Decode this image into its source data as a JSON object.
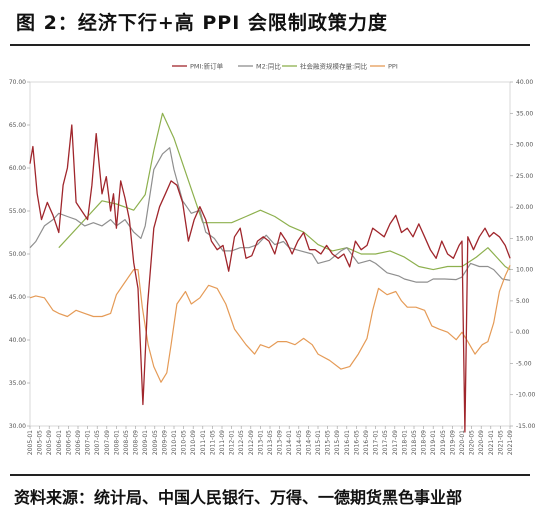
{
  "title": "图 2：经济下行+高 PPI 会限制政策力度",
  "source": "资料来源：统计局、中国人民银行、万得、一德期货黑色事业部",
  "colors": {
    "pmi": "#a0262c",
    "m2": "#8f8f8f",
    "social": "#8db04e",
    "ppi": "#e59b57"
  },
  "chart_data": {
    "type": "line",
    "title": "",
    "xlabel": "",
    "ylabel": "",
    "x_ticks": [
      "2005-01",
      "2005-05",
      "2005-09",
      "2006-01",
      "2006-05",
      "2006-09",
      "2007-01",
      "2007-05",
      "2007-09",
      "2008-01",
      "2008-05",
      "2008-09",
      "2009-01",
      "2009-05",
      "2009-09",
      "2010-01",
      "2010-05",
      "2010-09",
      "2011-01",
      "2011-05",
      "2011-09",
      "2012-01",
      "2012-05",
      "2012-09",
      "2013-01",
      "2013-05",
      "2013-09",
      "2014-01",
      "2014-05",
      "2014-09",
      "2015-01",
      "2015-05",
      "2015-09",
      "2016-01",
      "2016-05",
      "2016-09",
      "2017-01",
      "2017-05",
      "2017-09",
      "2018-01",
      "2018-05",
      "2018-09",
      "2019-01",
      "2019-05",
      "2019-09",
      "2020-01",
      "2020-05",
      "2020-09",
      "2021-01",
      "2021-05",
      "2021-09"
    ],
    "y_left": {
      "min": 30,
      "max": 70,
      "ticks": [
        "30.00",
        "35.00",
        "40.00",
        "45.00",
        "50.00",
        "55.00",
        "60.00",
        "65.00",
        "70.00"
      ]
    },
    "y_right": {
      "min": -15,
      "max": 40,
      "ticks": [
        "-15.00",
        "-10.00",
        "-5.00",
        "0.00",
        "5.00",
        "10.00",
        "15.00",
        "20.00",
        "25.00",
        "30.00",
        "35.00",
        "40.00"
      ]
    },
    "legend_position": "top-center",
    "grid": false,
    "series": [
      {
        "name": "PMI:新订单",
        "axis": "left",
        "points": [
          [
            2005.0,
            60.5
          ],
          [
            2005.1,
            62.5
          ],
          [
            2005.25,
            57.0
          ],
          [
            2005.4,
            54.0
          ],
          [
            2005.6,
            56.0
          ],
          [
            2005.8,
            54.5
          ],
          [
            2006.0,
            52.5
          ],
          [
            2006.15,
            58.0
          ],
          [
            2006.3,
            60.0
          ],
          [
            2006.45,
            65.0
          ],
          [
            2006.6,
            56.0
          ],
          [
            2006.8,
            55.0
          ],
          [
            2007.0,
            54.0
          ],
          [
            2007.15,
            58.0
          ],
          [
            2007.3,
            64.0
          ],
          [
            2007.5,
            57.0
          ],
          [
            2007.65,
            59.0
          ],
          [
            2007.8,
            55.0
          ],
          [
            2007.9,
            57.0
          ],
          [
            2008.0,
            53.0
          ],
          [
            2008.15,
            58.5
          ],
          [
            2008.3,
            56.5
          ],
          [
            2008.45,
            54.0
          ],
          [
            2008.6,
            49.0
          ],
          [
            2008.75,
            46.0
          ],
          [
            2008.92,
            32.5
          ],
          [
            2009.08,
            44.0
          ],
          [
            2009.3,
            53.0
          ],
          [
            2009.5,
            55.5
          ],
          [
            2009.7,
            57.0
          ],
          [
            2009.9,
            58.5
          ],
          [
            2010.1,
            58.0
          ],
          [
            2010.3,
            56.0
          ],
          [
            2010.5,
            51.5
          ],
          [
            2010.7,
            54.0
          ],
          [
            2010.9,
            55.5
          ],
          [
            2011.1,
            54.0
          ],
          [
            2011.3,
            51.5
          ],
          [
            2011.5,
            50.5
          ],
          [
            2011.7,
            51.0
          ],
          [
            2011.9,
            48.0
          ],
          [
            2012.1,
            52.0
          ],
          [
            2012.3,
            53.0
          ],
          [
            2012.5,
            49.5
          ],
          [
            2012.7,
            49.8
          ],
          [
            2012.9,
            51.5
          ],
          [
            2013.1,
            52.0
          ],
          [
            2013.3,
            51.5
          ],
          [
            2013.5,
            50.0
          ],
          [
            2013.7,
            52.5
          ],
          [
            2013.9,
            51.5
          ],
          [
            2014.1,
            50.0
          ],
          [
            2014.3,
            51.5
          ],
          [
            2014.5,
            52.5
          ],
          [
            2014.7,
            50.5
          ],
          [
            2014.9,
            50.5
          ],
          [
            2015.1,
            50.0
          ],
          [
            2015.3,
            51.0
          ],
          [
            2015.5,
            50.0
          ],
          [
            2015.7,
            49.5
          ],
          [
            2015.9,
            50.0
          ],
          [
            2016.1,
            48.5
          ],
          [
            2016.3,
            51.5
          ],
          [
            2016.5,
            50.5
          ],
          [
            2016.7,
            51.0
          ],
          [
            2016.9,
            53.0
          ],
          [
            2017.1,
            52.5
          ],
          [
            2017.3,
            52.0
          ],
          [
            2017.5,
            53.5
          ],
          [
            2017.7,
            54.5
          ],
          [
            2017.9,
            52.5
          ],
          [
            2018.1,
            53.0
          ],
          [
            2018.3,
            52.0
          ],
          [
            2018.5,
            53.5
          ],
          [
            2018.7,
            52.0
          ],
          [
            2018.9,
            50.5
          ],
          [
            2019.1,
            49.5
          ],
          [
            2019.3,
            51.5
          ],
          [
            2019.5,
            50.0
          ],
          [
            2019.7,
            49.5
          ],
          [
            2019.9,
            51.0
          ],
          [
            2020.0,
            51.5
          ],
          [
            2020.1,
            29.3
          ],
          [
            2020.2,
            52.0
          ],
          [
            2020.4,
            50.5
          ],
          [
            2020.6,
            52.0
          ],
          [
            2020.8,
            53.0
          ],
          [
            2020.95,
            52.0
          ],
          [
            2021.1,
            52.5
          ],
          [
            2021.3,
            52.0
          ],
          [
            2021.5,
            51.0
          ],
          [
            2021.67,
            49.5
          ]
        ]
      },
      {
        "name": "M2:同比",
        "axis": "right",
        "points": [
          [
            2005.0,
            13.5
          ],
          [
            2005.2,
            14.5
          ],
          [
            2005.5,
            17.0
          ],
          [
            2005.8,
            18.0
          ],
          [
            2006.0,
            19.0
          ],
          [
            2006.3,
            18.5
          ],
          [
            2006.6,
            18.0
          ],
          [
            2006.9,
            17.0
          ],
          [
            2007.2,
            17.5
          ],
          [
            2007.5,
            17.0
          ],
          [
            2007.8,
            18.0
          ],
          [
            2008.0,
            17.0
          ],
          [
            2008.3,
            18.0
          ],
          [
            2008.6,
            16.0
          ],
          [
            2008.85,
            15.0
          ],
          [
            2009.0,
            17.0
          ],
          [
            2009.3,
            26.0
          ],
          [
            2009.6,
            28.5
          ],
          [
            2009.85,
            29.5
          ],
          [
            2010.0,
            26.0
          ],
          [
            2010.3,
            21.0
          ],
          [
            2010.6,
            19.0
          ],
          [
            2010.9,
            19.5
          ],
          [
            2011.1,
            16.0
          ],
          [
            2011.4,
            15.0
          ],
          [
            2011.7,
            13.0
          ],
          [
            2012.0,
            13.0
          ],
          [
            2012.3,
            13.5
          ],
          [
            2012.6,
            13.5
          ],
          [
            2012.9,
            14.0
          ],
          [
            2013.2,
            15.5
          ],
          [
            2013.5,
            14.0
          ],
          [
            2013.8,
            14.5
          ],
          [
            2014.0,
            13.5
          ],
          [
            2014.4,
            13.0
          ],
          [
            2014.8,
            12.5
          ],
          [
            2015.0,
            11.0
          ],
          [
            2015.4,
            11.5
          ],
          [
            2015.8,
            13.0
          ],
          [
            2016.0,
            13.5
          ],
          [
            2016.4,
            11.0
          ],
          [
            2016.8,
            11.5
          ],
          [
            2017.0,
            11.0
          ],
          [
            2017.4,
            9.5
          ],
          [
            2017.8,
            9.0
          ],
          [
            2018.0,
            8.5
          ],
          [
            2018.4,
            8.0
          ],
          [
            2018.8,
            8.0
          ],
          [
            2019.0,
            8.5
          ],
          [
            2019.4,
            8.5
          ],
          [
            2019.8,
            8.4
          ],
          [
            2020.0,
            8.8
          ],
          [
            2020.3,
            11.0
          ],
          [
            2020.6,
            10.5
          ],
          [
            2020.9,
            10.5
          ],
          [
            2021.1,
            10.0
          ],
          [
            2021.4,
            8.5
          ],
          [
            2021.67,
            8.3
          ]
        ]
      },
      {
        "name": "社会融资规模存量:同比",
        "axis": "right",
        "points": [
          [
            2006.0,
            13.5
          ],
          [
            2007.0,
            18.5
          ],
          [
            2007.5,
            21.0
          ],
          [
            2008.0,
            20.5
          ],
          [
            2008.6,
            19.5
          ],
          [
            2009.0,
            22.0
          ],
          [
            2009.3,
            29.0
          ],
          [
            2009.6,
            35.0
          ],
          [
            2010.0,
            31.0
          ],
          [
            2011.0,
            17.5
          ],
          [
            2012.0,
            17.5
          ],
          [
            2012.5,
            18.5
          ],
          [
            2013.0,
            19.5
          ],
          [
            2013.5,
            18.5
          ],
          [
            2014.0,
            17.0
          ],
          [
            2014.5,
            16.0
          ],
          [
            2015.0,
            14.0
          ],
          [
            2015.5,
            13.0
          ],
          [
            2016.0,
            13.5
          ],
          [
            2016.5,
            12.5
          ],
          [
            2017.0,
            12.5
          ],
          [
            2017.5,
            13.0
          ],
          [
            2018.0,
            12.0
          ],
          [
            2018.5,
            10.5
          ],
          [
            2019.0,
            10.0
          ],
          [
            2019.5,
            10.5
          ],
          [
            2020.0,
            10.5
          ],
          [
            2020.5,
            12.0
          ],
          [
            2020.9,
            13.5
          ],
          [
            2021.2,
            12.0
          ],
          [
            2021.5,
            10.5
          ],
          [
            2021.67,
            10.0
          ]
        ]
      },
      {
        "name": "PPI",
        "axis": "right",
        "points": [
          [
            2005.0,
            5.5
          ],
          [
            2005.2,
            5.8
          ],
          [
            2005.5,
            5.5
          ],
          [
            2005.8,
            3.5
          ],
          [
            2006.0,
            3.0
          ],
          [
            2006.3,
            2.5
          ],
          [
            2006.6,
            3.5
          ],
          [
            2006.9,
            3.0
          ],
          [
            2007.2,
            2.5
          ],
          [
            2007.5,
            2.5
          ],
          [
            2007.8,
            3.0
          ],
          [
            2008.0,
            6.0
          ],
          [
            2008.3,
            8.0
          ],
          [
            2008.6,
            10.0
          ],
          [
            2008.75,
            10.0
          ],
          [
            2008.9,
            4.0
          ],
          [
            2009.1,
            -2.0
          ],
          [
            2009.3,
            -5.5
          ],
          [
            2009.55,
            -8.0
          ],
          [
            2009.75,
            -6.5
          ],
          [
            2009.9,
            -2.0
          ],
          [
            2010.1,
            4.5
          ],
          [
            2010.4,
            6.5
          ],
          [
            2010.6,
            4.5
          ],
          [
            2010.9,
            5.5
          ],
          [
            2011.2,
            7.5
          ],
          [
            2011.5,
            7.0
          ],
          [
            2011.8,
            4.5
          ],
          [
            2012.1,
            0.5
          ],
          [
            2012.5,
            -2.0
          ],
          [
            2012.8,
            -3.5
          ],
          [
            2013.0,
            -2.0
          ],
          [
            2013.3,
            -2.5
          ],
          [
            2013.6,
            -1.5
          ],
          [
            2013.9,
            -1.5
          ],
          [
            2014.2,
            -2.0
          ],
          [
            2014.5,
            -1.0
          ],
          [
            2014.8,
            -2.0
          ],
          [
            2015.0,
            -3.5
          ],
          [
            2015.4,
            -4.5
          ],
          [
            2015.8,
            -5.9
          ],
          [
            2016.1,
            -5.5
          ],
          [
            2016.4,
            -3.5
          ],
          [
            2016.7,
            -1.0
          ],
          [
            2016.9,
            3.5
          ],
          [
            2017.1,
            7.0
          ],
          [
            2017.4,
            6.0
          ],
          [
            2017.7,
            6.5
          ],
          [
            2017.9,
            5.0
          ],
          [
            2018.1,
            4.0
          ],
          [
            2018.4,
            4.0
          ],
          [
            2018.7,
            3.5
          ],
          [
            2018.95,
            1.0
          ],
          [
            2019.2,
            0.5
          ],
          [
            2019.5,
            0.0
          ],
          [
            2019.8,
            -1.2
          ],
          [
            2020.0,
            0.0
          ],
          [
            2020.2,
            -1.5
          ],
          [
            2020.45,
            -3.5
          ],
          [
            2020.7,
            -2.0
          ],
          [
            2020.9,
            -1.5
          ],
          [
            2021.1,
            1.5
          ],
          [
            2021.3,
            6.5
          ],
          [
            2021.5,
            9.0
          ],
          [
            2021.67,
            10.7
          ]
        ]
      }
    ]
  }
}
